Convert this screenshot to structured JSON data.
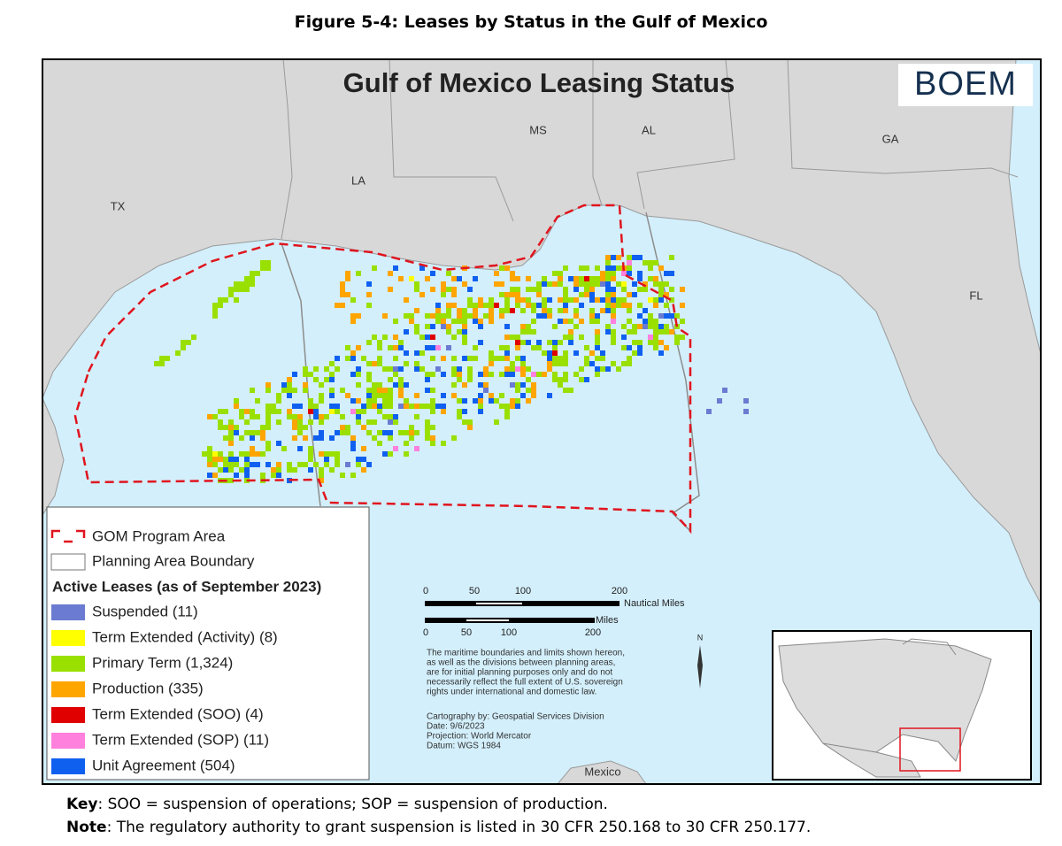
{
  "figure_title": "Figure 5-4:  Leases by Status in the Gulf of Mexico",
  "map": {
    "title": "Gulf of Mexico Leasing Status",
    "logo": "BOEM",
    "places": [
      "TX",
      "LA",
      "MS",
      "AL",
      "GA",
      "FL",
      "Mexico"
    ],
    "north": "N"
  },
  "legend": {
    "boundaries": [
      "GOM Program Area",
      "Planning Area Boundary"
    ],
    "header": "Active Leases (as of September 2023)",
    "items": [
      {
        "label": "Suspended (11)",
        "color": "#6b7bd1"
      },
      {
        "label": "Term Extended (Activity) (8)",
        "color": "#ffff00"
      },
      {
        "label": "Primary Term (1,324)",
        "color": "#99e000"
      },
      {
        "label": "Production (335)",
        "color": "#ffa500"
      },
      {
        "label": "Term Extended (SOO) (4)",
        "color": "#e00000"
      },
      {
        "label": "Term Extended (SOP) (11)",
        "color": "#ff80dd"
      },
      {
        "label": "Unit Agreement (504)",
        "color": "#1060f0"
      }
    ]
  },
  "scale": {
    "nautical_labels": [
      "0",
      "50",
      "100",
      "200"
    ],
    "nautical_unit": "Nautical Miles",
    "miles_unit": "Miles",
    "miles_labels": [
      "0",
      "50",
      "100",
      "200"
    ]
  },
  "disclaimer": [
    "The maritime boundaries and limits shown hereon,",
    "as well as the divisions between planning areas,",
    "are for initial planning purposes only and do not",
    "necessarily reflect the full extent of U.S. sovereign",
    "rights under international and domestic law."
  ],
  "credits": [
    "Cartography by: Geospatial Services Division",
    "Date: 9/6/2023",
    "Projection: World Mercator",
    "Datum: WGS 1984"
  ],
  "notes": {
    "key": {
      "label": "Key",
      "text": ": SOO = suspension of operations; SOP = suspension of production."
    },
    "note": {
      "label": "Note",
      "text": ": The regulatory authority to grant suspension is listed in 30 CFR 250.168 to 30 CFR 250.177."
    }
  }
}
